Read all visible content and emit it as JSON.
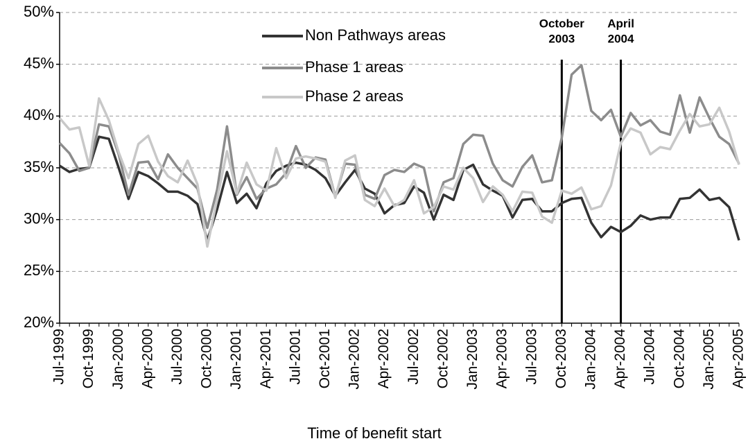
{
  "chart_data": {
    "type": "line",
    "x_label": "Time of benefit start",
    "categories": [
      "Jul-1999",
      null,
      null,
      "Oct-1999",
      null,
      null,
      "Jan-2000",
      null,
      null,
      "Apr-2000",
      null,
      null,
      "Jul-2000",
      null,
      null,
      "Oct-2000",
      null,
      null,
      "Jan-2001",
      null,
      null,
      "Apr-2001",
      null,
      null,
      "Jul-2001",
      null,
      null,
      "Oct-2001",
      null,
      null,
      "Jan-2002",
      null,
      null,
      "Apr-2002",
      null,
      null,
      "Jul-2002",
      null,
      null,
      "Oct-2002",
      null,
      null,
      "Jan-2003",
      null,
      null,
      "Apr-2003",
      null,
      null,
      "Jul-2003",
      null,
      null,
      "Oct-2003",
      null,
      null,
      "Jan-2004",
      null,
      null,
      "Apr-2004",
      null,
      null,
      "Jul-2004",
      null,
      null,
      "Oct-2004",
      null,
      null,
      "Jan-2005",
      null,
      null,
      "Apr-2005"
    ],
    "series": [
      {
        "name": "Non Pathways areas",
        "color": "#333333",
        "values": [
          35.2,
          34.6,
          34.9,
          35.0,
          38.0,
          37.8,
          35.0,
          32.0,
          34.6,
          34.2,
          33.5,
          32.7,
          32.7,
          32.3,
          31.5,
          28.0,
          31.0,
          34.6,
          31.6,
          32.5,
          31.1,
          33.5,
          34.7,
          35.2,
          35.5,
          35.3,
          34.8,
          34.0,
          32.3,
          33.6,
          34.8,
          33.0,
          32.5,
          30.6,
          31.4,
          31.6,
          33.2,
          32.6,
          30.0,
          32.4,
          31.9,
          34.8,
          35.3,
          33.4,
          32.8,
          32.3,
          30.2,
          31.9,
          32.0,
          30.8,
          30.8,
          31.6,
          32.0,
          32.1,
          29.7,
          28.3,
          29.3,
          28.8,
          29.4,
          30.4,
          30.0,
          30.2,
          30.2,
          32.0,
          32.1,
          32.9,
          31.9,
          32.1,
          31.2,
          28.0
        ]
      },
      {
        "name": "Phase 1 areas",
        "color": "#8c8c8c",
        "values": [
          37.4,
          36.4,
          34.7,
          35.0,
          39.2,
          39.0,
          36.3,
          32.4,
          35.5,
          35.6,
          33.9,
          36.3,
          35.0,
          34.0,
          33.0,
          29.2,
          32.9,
          39.0,
          32.4,
          34.1,
          32.0,
          33.0,
          33.4,
          34.5,
          37.1,
          35.0,
          36.0,
          35.8,
          32.2,
          35.4,
          35.3,
          32.4,
          32.0,
          34.3,
          34.8,
          34.6,
          35.4,
          35.0,
          30.8,
          33.6,
          34.0,
          37.3,
          38.2,
          38.1,
          35.4,
          33.8,
          33.2,
          35.1,
          36.2,
          33.6,
          33.8,
          37.9,
          44.0,
          44.9,
          40.5,
          39.6,
          40.6,
          38.0,
          40.3,
          39.1,
          39.6,
          38.5,
          38.2,
          42.0,
          38.4,
          41.8,
          39.8,
          38.0,
          37.3,
          35.4
        ]
      },
      {
        "name": "Phase 2 areas",
        "color": "#c8c8c8",
        "values": [
          39.8,
          38.7,
          38.9,
          35.2,
          41.7,
          39.6,
          36.5,
          34.0,
          37.3,
          38.1,
          35.6,
          34.2,
          33.6,
          35.7,
          33.4,
          27.4,
          32.0,
          36.6,
          32.5,
          35.5,
          33.4,
          32.8,
          36.9,
          34.0,
          35.9,
          36.1,
          35.9,
          35.6,
          32.1,
          35.7,
          36.2,
          31.9,
          31.3,
          33.0,
          31.3,
          31.9,
          33.8,
          30.6,
          31.2,
          33.2,
          32.9,
          35.0,
          34.0,
          31.7,
          33.2,
          32.4,
          30.8,
          32.7,
          32.6,
          30.3,
          29.7,
          32.8,
          32.5,
          33.1,
          31.0,
          31.3,
          33.3,
          37.4,
          38.8,
          38.4,
          36.3,
          37.0,
          36.8,
          38.6,
          40.2,
          39.0,
          39.2,
          40.8,
          38.5,
          35.3
        ]
      }
    ],
    "ylim": [
      20,
      50
    ],
    "yticks": [
      {
        "value": 20,
        "label": "20%"
      },
      {
        "value": 25,
        "label": "25%"
      },
      {
        "value": 30,
        "label": "30%"
      },
      {
        "value": 35,
        "label": "35%"
      },
      {
        "value": 40,
        "label": "40%"
      },
      {
        "value": 45,
        "label": "45%"
      },
      {
        "value": 50,
        "label": "50%"
      }
    ],
    "grid": true,
    "legend": "top",
    "annotations": [
      {
        "lines": [
          "October",
          "2003"
        ],
        "category": "Oct-2003"
      },
      {
        "lines": [
          "April",
          "2004"
        ],
        "category": "Apr-2004"
      }
    ]
  }
}
